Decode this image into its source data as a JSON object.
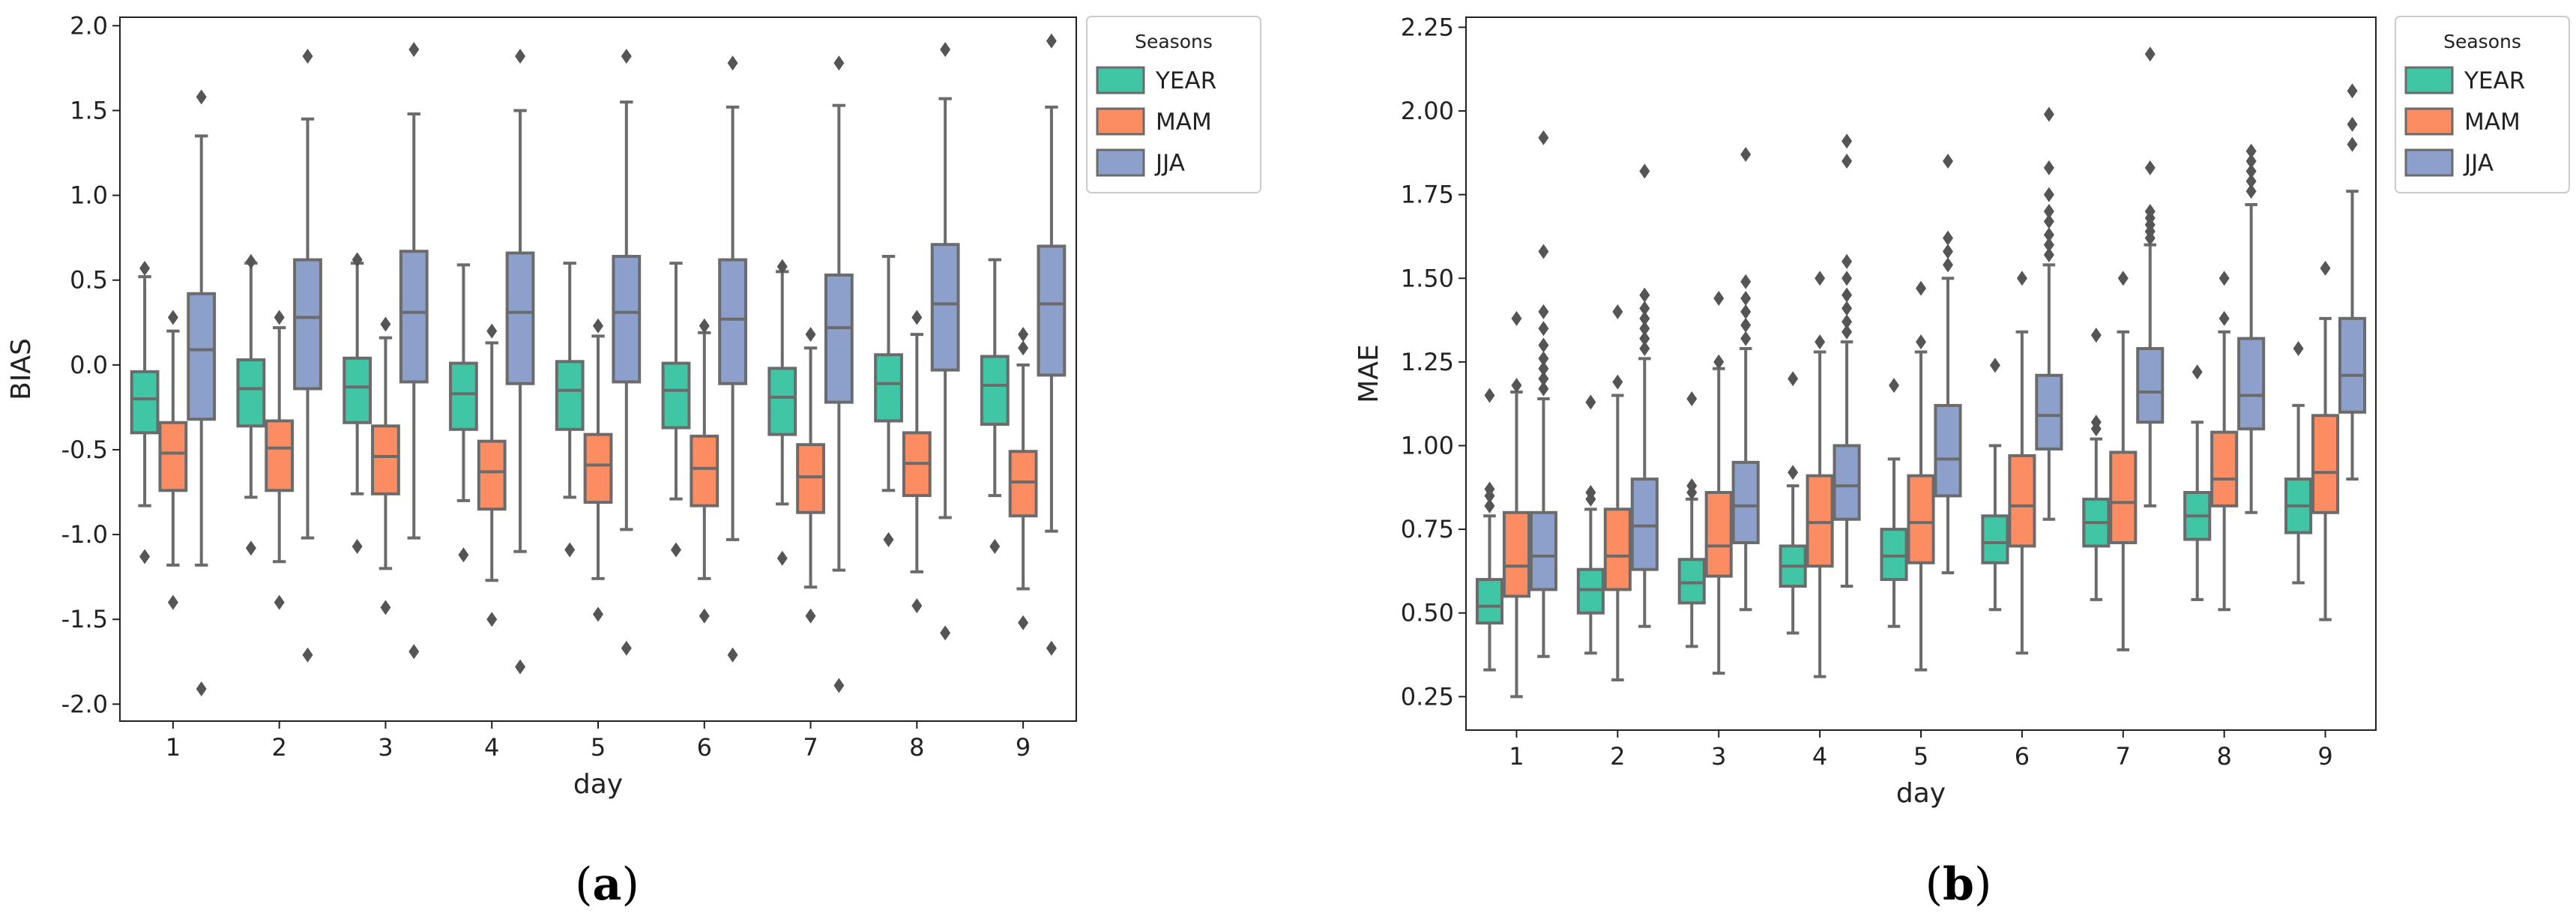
{
  "colors": {
    "YEAR": "#40c6a4",
    "MAM": "#fc8d62",
    "JJA": "#8da0cb",
    "line": "#6b6b6b"
  },
  "panels": [
    {
      "open": "(",
      "letter": "a",
      "close": ")"
    },
    {
      "open": "(",
      "letter": "b",
      "close": ")"
    }
  ],
  "chart_data": [
    {
      "type": "box",
      "xlabel": "day",
      "ylabel": "BIAS",
      "ylim": [
        -2.1,
        2.05
      ],
      "yticks": [
        "-2.0",
        "-1.5",
        "-1.0",
        "-0.5",
        "0.0",
        "0.5",
        "1.0",
        "1.5",
        "2.0"
      ],
      "categories": [
        "1",
        "2",
        "3",
        "4",
        "5",
        "6",
        "7",
        "8",
        "9"
      ],
      "legend": {
        "title": "Seasons",
        "position": "upper-right-outside",
        "entries": [
          "YEAR",
          "MAM",
          "JJA"
        ]
      },
      "series": [
        {
          "name": "YEAR",
          "boxes": [
            {
              "whislo": -0.83,
              "q1": -0.4,
              "med": -0.2,
              "q3": -0.04,
              "whishi": 0.52,
              "fliers": [
                0.57,
                -1.13
              ]
            },
            {
              "whislo": -0.78,
              "q1": -0.36,
              "med": -0.14,
              "q3": 0.03,
              "whishi": 0.6,
              "fliers": [
                0.61,
                -1.08
              ]
            },
            {
              "whislo": -0.76,
              "q1": -0.34,
              "med": -0.13,
              "q3": 0.04,
              "whishi": 0.6,
              "fliers": [
                0.62,
                -1.07
              ]
            },
            {
              "whislo": -0.8,
              "q1": -0.38,
              "med": -0.17,
              "q3": 0.01,
              "whishi": 0.59,
              "fliers": [
                -1.12
              ]
            },
            {
              "whislo": -0.78,
              "q1": -0.38,
              "med": -0.15,
              "q3": 0.02,
              "whishi": 0.6,
              "fliers": [
                -1.09
              ]
            },
            {
              "whislo": -0.79,
              "q1": -0.37,
              "med": -0.15,
              "q3": 0.01,
              "whishi": 0.6,
              "fliers": [
                -1.09
              ]
            },
            {
              "whislo": -0.82,
              "q1": -0.41,
              "med": -0.19,
              "q3": -0.02,
              "whishi": 0.55,
              "fliers": [
                0.58,
                -1.14
              ]
            },
            {
              "whislo": -0.74,
              "q1": -0.33,
              "med": -0.11,
              "q3": 0.06,
              "whishi": 0.64,
              "fliers": [
                -1.03
              ]
            },
            {
              "whislo": -0.77,
              "q1": -0.35,
              "med": -0.12,
              "q3": 0.05,
              "whishi": 0.62,
              "fliers": [
                -1.07
              ]
            }
          ]
        },
        {
          "name": "MAM",
          "boxes": [
            {
              "whislo": -1.18,
              "q1": -0.74,
              "med": -0.52,
              "q3": -0.34,
              "whishi": 0.2,
              "fliers": [
                0.28,
                -1.4
              ]
            },
            {
              "whislo": -1.16,
              "q1": -0.74,
              "med": -0.49,
              "q3": -0.33,
              "whishi": 0.22,
              "fliers": [
                0.28,
                -1.4
              ]
            },
            {
              "whislo": -1.2,
              "q1": -0.76,
              "med": -0.54,
              "q3": -0.36,
              "whishi": 0.16,
              "fliers": [
                0.24,
                -1.43
              ]
            },
            {
              "whislo": -1.27,
              "q1": -0.85,
              "med": -0.63,
              "q3": -0.45,
              "whishi": 0.13,
              "fliers": [
                0.2,
                -1.5
              ]
            },
            {
              "whislo": -1.26,
              "q1": -0.81,
              "med": -0.59,
              "q3": -0.41,
              "whishi": 0.17,
              "fliers": [
                0.23,
                -1.47
              ]
            },
            {
              "whislo": -1.26,
              "q1": -0.83,
              "med": -0.61,
              "q3": -0.42,
              "whishi": 0.19,
              "fliers": [
                0.23,
                -1.48
              ]
            },
            {
              "whislo": -1.31,
              "q1": -0.87,
              "med": -0.66,
              "q3": -0.47,
              "whishi": 0.1,
              "fliers": [
                0.18,
                -1.48
              ]
            },
            {
              "whislo": -1.22,
              "q1": -0.77,
              "med": -0.58,
              "q3": -0.4,
              "whishi": 0.18,
              "fliers": [
                0.28,
                -1.42
              ]
            },
            {
              "whislo": -1.32,
              "q1": -0.89,
              "med": -0.69,
              "q3": -0.51,
              "whishi": 0.0,
              "fliers": [
                0.1,
                0.18,
                -1.52
              ]
            }
          ]
        },
        {
          "name": "JJA",
          "boxes": [
            {
              "whislo": -1.18,
              "q1": -0.32,
              "med": 0.09,
              "q3": 0.42,
              "whishi": 1.35,
              "fliers": [
                1.58,
                -1.91
              ]
            },
            {
              "whislo": -1.02,
              "q1": -0.14,
              "med": 0.28,
              "q3": 0.62,
              "whishi": 1.45,
              "fliers": [
                1.82,
                -1.71
              ]
            },
            {
              "whislo": -1.02,
              "q1": -0.1,
              "med": 0.31,
              "q3": 0.67,
              "whishi": 1.48,
              "fliers": [
                1.86,
                -1.69
              ]
            },
            {
              "whislo": -1.1,
              "q1": -0.11,
              "med": 0.31,
              "q3": 0.66,
              "whishi": 1.5,
              "fliers": [
                1.82,
                -1.78
              ]
            },
            {
              "whislo": -0.97,
              "q1": -0.1,
              "med": 0.31,
              "q3": 0.64,
              "whishi": 1.55,
              "fliers": [
                1.82,
                -1.67
              ]
            },
            {
              "whislo": -1.03,
              "q1": -0.11,
              "med": 0.27,
              "q3": 0.62,
              "whishi": 1.52,
              "fliers": [
                1.78,
                -1.71
              ]
            },
            {
              "whislo": -1.21,
              "q1": -0.22,
              "med": 0.22,
              "q3": 0.53,
              "whishi": 1.53,
              "fliers": [
                1.78,
                -1.89
              ]
            },
            {
              "whislo": -0.9,
              "q1": -0.03,
              "med": 0.36,
              "q3": 0.71,
              "whishi": 1.57,
              "fliers": [
                1.86,
                -1.58
              ]
            },
            {
              "whislo": -0.98,
              "q1": -0.06,
              "med": 0.36,
              "q3": 0.7,
              "whishi": 1.52,
              "fliers": [
                1.91,
                -1.67
              ]
            }
          ]
        }
      ]
    },
    {
      "type": "box",
      "xlabel": "day",
      "ylabel": "MAE",
      "ylim": [
        0.15,
        2.28
      ],
      "yticks": [
        "0.25",
        "0.50",
        "0.75",
        "1.00",
        "1.25",
        "1.50",
        "1.75",
        "2.00",
        "2.25"
      ],
      "categories": [
        "1",
        "2",
        "3",
        "4",
        "5",
        "6",
        "7",
        "8",
        "9"
      ],
      "legend": {
        "title": "Seasons",
        "position": "upper-right-outside",
        "entries": [
          "YEAR",
          "MAM",
          "JJA"
        ]
      },
      "series": [
        {
          "name": "YEAR",
          "boxes": [
            {
              "whislo": 0.33,
              "q1": 0.47,
              "med": 0.52,
              "q3": 0.6,
              "whishi": 0.79,
              "fliers": [
                0.82,
                0.85,
                0.87,
                1.15
              ]
            },
            {
              "whislo": 0.38,
              "q1": 0.5,
              "med": 0.57,
              "q3": 0.63,
              "whishi": 0.81,
              "fliers": [
                0.84,
                0.86,
                1.13
              ]
            },
            {
              "whislo": 0.4,
              "q1": 0.53,
              "med": 0.59,
              "q3": 0.66,
              "whishi": 0.84,
              "fliers": [
                0.86,
                0.88,
                1.14
              ]
            },
            {
              "whislo": 0.44,
              "q1": 0.58,
              "med": 0.64,
              "q3": 0.7,
              "whishi": 0.88,
              "fliers": [
                0.92,
                1.2
              ]
            },
            {
              "whislo": 0.46,
              "q1": 0.6,
              "med": 0.67,
              "q3": 0.75,
              "whishi": 0.96,
              "fliers": [
                1.18
              ]
            },
            {
              "whislo": 0.51,
              "q1": 0.65,
              "med": 0.71,
              "q3": 0.79,
              "whishi": 1.0,
              "fliers": [
                1.24
              ]
            },
            {
              "whislo": 0.54,
              "q1": 0.7,
              "med": 0.77,
              "q3": 0.84,
              "whishi": 1.02,
              "fliers": [
                1.05,
                1.07,
                1.33
              ]
            },
            {
              "whislo": 0.54,
              "q1": 0.72,
              "med": 0.79,
              "q3": 0.86,
              "whishi": 1.07,
              "fliers": [
                1.22
              ]
            },
            {
              "whislo": 0.59,
              "q1": 0.74,
              "med": 0.82,
              "q3": 0.9,
              "whishi": 1.12,
              "fliers": [
                1.29
              ]
            }
          ]
        },
        {
          "name": "MAM",
          "boxes": [
            {
              "whislo": 0.25,
              "q1": 0.55,
              "med": 0.64,
              "q3": 0.8,
              "whishi": 1.16,
              "fliers": [
                1.18,
                1.38
              ]
            },
            {
              "whislo": 0.3,
              "q1": 0.57,
              "med": 0.67,
              "q3": 0.81,
              "whishi": 1.15,
              "fliers": [
                1.19,
                1.4
              ]
            },
            {
              "whislo": 0.32,
              "q1": 0.61,
              "med": 0.7,
              "q3": 0.86,
              "whishi": 1.23,
              "fliers": [
                1.25,
                1.44
              ]
            },
            {
              "whislo": 0.31,
              "q1": 0.64,
              "med": 0.77,
              "q3": 0.91,
              "whishi": 1.28,
              "fliers": [
                1.31,
                1.5
              ]
            },
            {
              "whislo": 0.33,
              "q1": 0.65,
              "med": 0.77,
              "q3": 0.91,
              "whishi": 1.28,
              "fliers": [
                1.31,
                1.47
              ]
            },
            {
              "whislo": 0.38,
              "q1": 0.7,
              "med": 0.82,
              "q3": 0.97,
              "whishi": 1.34,
              "fliers": [
                1.5
              ]
            },
            {
              "whislo": 0.39,
              "q1": 0.71,
              "med": 0.83,
              "q3": 0.98,
              "whishi": 1.34,
              "fliers": [
                1.5
              ]
            },
            {
              "whislo": 0.51,
              "q1": 0.82,
              "med": 0.9,
              "q3": 1.04,
              "whishi": 1.34,
              "fliers": [
                1.38,
                1.5
              ]
            },
            {
              "whislo": 0.48,
              "q1": 0.8,
              "med": 0.92,
              "q3": 1.09,
              "whishi": 1.38,
              "fliers": [
                1.53
              ]
            }
          ]
        },
        {
          "name": "JJA",
          "boxes": [
            {
              "whislo": 0.37,
              "q1": 0.57,
              "med": 0.67,
              "q3": 0.8,
              "whishi": 1.14,
              "fliers": [
                1.17,
                1.2,
                1.23,
                1.26,
                1.3,
                1.35,
                1.4,
                1.58,
                1.92
              ]
            },
            {
              "whislo": 0.46,
              "q1": 0.63,
              "med": 0.76,
              "q3": 0.9,
              "whishi": 1.26,
              "fliers": [
                1.29,
                1.32,
                1.35,
                1.38,
                1.41,
                1.45,
                1.82
              ]
            },
            {
              "whislo": 0.51,
              "q1": 0.71,
              "med": 0.82,
              "q3": 0.95,
              "whishi": 1.29,
              "fliers": [
                1.32,
                1.36,
                1.4,
                1.44,
                1.49,
                1.87
              ]
            },
            {
              "whislo": 0.58,
              "q1": 0.78,
              "med": 0.88,
              "q3": 1.0,
              "whishi": 1.31,
              "fliers": [
                1.34,
                1.37,
                1.41,
                1.45,
                1.5,
                1.55,
                1.85,
                1.91
              ]
            },
            {
              "whislo": 0.62,
              "q1": 0.85,
              "med": 0.96,
              "q3": 1.12,
              "whishi": 1.5,
              "fliers": [
                1.54,
                1.58,
                1.62,
                1.85
              ]
            },
            {
              "whislo": 0.78,
              "q1": 0.99,
              "med": 1.09,
              "q3": 1.21,
              "whishi": 1.54,
              "fliers": [
                1.57,
                1.6,
                1.63,
                1.67,
                1.7,
                1.75,
                1.83,
                1.99
              ]
            },
            {
              "whislo": 0.82,
              "q1": 1.07,
              "med": 1.16,
              "q3": 1.29,
              "whishi": 1.6,
              "fliers": [
                1.62,
                1.64,
                1.66,
                1.68,
                1.7,
                1.83,
                2.17
              ]
            },
            {
              "whislo": 0.8,
              "q1": 1.05,
              "med": 1.15,
              "q3": 1.32,
              "whishi": 1.72,
              "fliers": [
                1.76,
                1.79,
                1.82,
                1.85,
                1.88
              ]
            },
            {
              "whislo": 0.9,
              "q1": 1.1,
              "med": 1.21,
              "q3": 1.38,
              "whishi": 1.76,
              "fliers": [
                1.9,
                1.96,
                2.06
              ]
            }
          ]
        }
      ]
    }
  ]
}
